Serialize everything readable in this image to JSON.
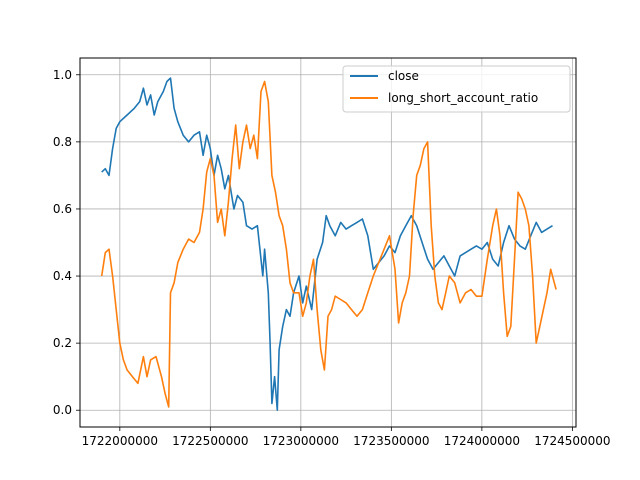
{
  "chart_data": {
    "type": "line",
    "grid": true,
    "legend_position": "top-right",
    "xlim": [
      1721780000,
      1724520000
    ],
    "ylim": [
      -0.05,
      1.05
    ],
    "x_ticks": [
      1722000000,
      1722500000,
      1723000000,
      1723500000,
      1724000000,
      1724500000
    ],
    "y_ticks": [
      0.0,
      0.2,
      0.4,
      0.6,
      0.8,
      1.0
    ],
    "x_tick_labels": [
      "1722000000",
      "1722500000",
      "1723000000",
      "1723500000",
      "1724000000",
      "1724500000"
    ],
    "y_tick_labels": [
      "0.0",
      "0.2",
      "0.4",
      "0.6",
      "0.8",
      "1.0"
    ],
    "series": [
      {
        "name": "close",
        "color": "#1f77b4",
        "points": [
          [
            1721900000,
            0.71
          ],
          [
            1721920000,
            0.72
          ],
          [
            1721940000,
            0.7
          ],
          [
            1721960000,
            0.78
          ],
          [
            1721980000,
            0.84
          ],
          [
            1722000000,
            0.86
          ],
          [
            1722040000,
            0.88
          ],
          [
            1722080000,
            0.9
          ],
          [
            1722110000,
            0.92
          ],
          [
            1722130000,
            0.96
          ],
          [
            1722150000,
            0.91
          ],
          [
            1722170000,
            0.94
          ],
          [
            1722190000,
            0.88
          ],
          [
            1722210000,
            0.92
          ],
          [
            1722240000,
            0.95
          ],
          [
            1722260000,
            0.98
          ],
          [
            1722280000,
            0.99
          ],
          [
            1722300000,
            0.9
          ],
          [
            1722320000,
            0.86
          ],
          [
            1722350000,
            0.82
          ],
          [
            1722380000,
            0.8
          ],
          [
            1722410000,
            0.82
          ],
          [
            1722440000,
            0.83
          ],
          [
            1722460000,
            0.76
          ],
          [
            1722480000,
            0.82
          ],
          [
            1722500000,
            0.78
          ],
          [
            1722520000,
            0.7
          ],
          [
            1722540000,
            0.76
          ],
          [
            1722560000,
            0.72
          ],
          [
            1722580000,
            0.66
          ],
          [
            1722600000,
            0.7
          ],
          [
            1722630000,
            0.6
          ],
          [
            1722650000,
            0.64
          ],
          [
            1722680000,
            0.62
          ],
          [
            1722700000,
            0.55
          ],
          [
            1722730000,
            0.54
          ],
          [
            1722760000,
            0.55
          ],
          [
            1722790000,
            0.4
          ],
          [
            1722800000,
            0.48
          ],
          [
            1722820000,
            0.35
          ],
          [
            1722830000,
            0.2
          ],
          [
            1722840000,
            0.02
          ],
          [
            1722855000,
            0.1
          ],
          [
            1722870000,
            0.0
          ],
          [
            1722880000,
            0.18
          ],
          [
            1722900000,
            0.25
          ],
          [
            1722920000,
            0.3
          ],
          [
            1722940000,
            0.28
          ],
          [
            1722960000,
            0.35
          ],
          [
            1722990000,
            0.4
          ],
          [
            1723010000,
            0.32
          ],
          [
            1723030000,
            0.37
          ],
          [
            1723060000,
            0.3
          ],
          [
            1723090000,
            0.45
          ],
          [
            1723120000,
            0.5
          ],
          [
            1723140000,
            0.58
          ],
          [
            1723160000,
            0.55
          ],
          [
            1723190000,
            0.52
          ],
          [
            1723220000,
            0.56
          ],
          [
            1723250000,
            0.54
          ],
          [
            1723280000,
            0.55
          ],
          [
            1723310000,
            0.56
          ],
          [
            1723340000,
            0.57
          ],
          [
            1723370000,
            0.52
          ],
          [
            1723400000,
            0.42
          ],
          [
            1723430000,
            0.44
          ],
          [
            1723460000,
            0.46
          ],
          [
            1723490000,
            0.49
          ],
          [
            1723520000,
            0.47
          ],
          [
            1723550000,
            0.52
          ],
          [
            1723580000,
            0.55
          ],
          [
            1723610000,
            0.58
          ],
          [
            1723640000,
            0.55
          ],
          [
            1723670000,
            0.5
          ],
          [
            1723700000,
            0.45
          ],
          [
            1723730000,
            0.42
          ],
          [
            1723760000,
            0.44
          ],
          [
            1723790000,
            0.46
          ],
          [
            1723820000,
            0.43
          ],
          [
            1723850000,
            0.4
          ],
          [
            1723880000,
            0.46
          ],
          [
            1723910000,
            0.47
          ],
          [
            1723940000,
            0.48
          ],
          [
            1723970000,
            0.49
          ],
          [
            1724000000,
            0.48
          ],
          [
            1724030000,
            0.5
          ],
          [
            1724060000,
            0.45
          ],
          [
            1724090000,
            0.43
          ],
          [
            1724120000,
            0.5
          ],
          [
            1724150000,
            0.55
          ],
          [
            1724180000,
            0.51
          ],
          [
            1724210000,
            0.49
          ],
          [
            1724240000,
            0.48
          ],
          [
            1724270000,
            0.52
          ],
          [
            1724300000,
            0.56
          ],
          [
            1724330000,
            0.53
          ],
          [
            1724360000,
            0.54
          ],
          [
            1724390000,
            0.55
          ]
        ]
      },
      {
        "name": "long_short_account_ratio",
        "color": "#ff7f0e",
        "points": [
          [
            1721900000,
            0.4
          ],
          [
            1721920000,
            0.47
          ],
          [
            1721940000,
            0.48
          ],
          [
            1721960000,
            0.4
          ],
          [
            1721980000,
            0.3
          ],
          [
            1722000000,
            0.2
          ],
          [
            1722020000,
            0.15
          ],
          [
            1722040000,
            0.12
          ],
          [
            1722070000,
            0.1
          ],
          [
            1722100000,
            0.08
          ],
          [
            1722130000,
            0.16
          ],
          [
            1722150000,
            0.1
          ],
          [
            1722170000,
            0.15
          ],
          [
            1722200000,
            0.16
          ],
          [
            1722230000,
            0.1
          ],
          [
            1722250000,
            0.05
          ],
          [
            1722270000,
            0.01
          ],
          [
            1722280000,
            0.35
          ],
          [
            1722300000,
            0.38
          ],
          [
            1722320000,
            0.44
          ],
          [
            1722350000,
            0.48
          ],
          [
            1722380000,
            0.51
          ],
          [
            1722410000,
            0.5
          ],
          [
            1722440000,
            0.53
          ],
          [
            1722460000,
            0.6
          ],
          [
            1722480000,
            0.71
          ],
          [
            1722500000,
            0.75
          ],
          [
            1722520000,
            0.7
          ],
          [
            1722540000,
            0.56
          ],
          [
            1722560000,
            0.6
          ],
          [
            1722580000,
            0.52
          ],
          [
            1722600000,
            0.62
          ],
          [
            1722620000,
            0.75
          ],
          [
            1722640000,
            0.85
          ],
          [
            1722660000,
            0.72
          ],
          [
            1722680000,
            0.8
          ],
          [
            1722700000,
            0.85
          ],
          [
            1722720000,
            0.78
          ],
          [
            1722740000,
            0.82
          ],
          [
            1722760000,
            0.75
          ],
          [
            1722780000,
            0.95
          ],
          [
            1722800000,
            0.98
          ],
          [
            1722820000,
            0.92
          ],
          [
            1722840000,
            0.7
          ],
          [
            1722860000,
            0.65
          ],
          [
            1722880000,
            0.58
          ],
          [
            1722900000,
            0.55
          ],
          [
            1722920000,
            0.48
          ],
          [
            1722940000,
            0.38
          ],
          [
            1722960000,
            0.35
          ],
          [
            1722990000,
            0.35
          ],
          [
            1723010000,
            0.28
          ],
          [
            1723030000,
            0.32
          ],
          [
            1723050000,
            0.4
          ],
          [
            1723070000,
            0.45
          ],
          [
            1723090000,
            0.3
          ],
          [
            1723110000,
            0.18
          ],
          [
            1723130000,
            0.12
          ],
          [
            1723150000,
            0.28
          ],
          [
            1723170000,
            0.3
          ],
          [
            1723190000,
            0.34
          ],
          [
            1723220000,
            0.33
          ],
          [
            1723250000,
            0.32
          ],
          [
            1723280000,
            0.3
          ],
          [
            1723310000,
            0.28
          ],
          [
            1723340000,
            0.3
          ],
          [
            1723370000,
            0.35
          ],
          [
            1723400000,
            0.4
          ],
          [
            1723430000,
            0.44
          ],
          [
            1723460000,
            0.48
          ],
          [
            1723490000,
            0.52
          ],
          [
            1723520000,
            0.42
          ],
          [
            1723540000,
            0.26
          ],
          [
            1723560000,
            0.32
          ],
          [
            1723580000,
            0.35
          ],
          [
            1723600000,
            0.4
          ],
          [
            1723620000,
            0.58
          ],
          [
            1723640000,
            0.7
          ],
          [
            1723660000,
            0.73
          ],
          [
            1723680000,
            0.78
          ],
          [
            1723700000,
            0.8
          ],
          [
            1723720000,
            0.55
          ],
          [
            1723740000,
            0.4
          ],
          [
            1723760000,
            0.32
          ],
          [
            1723780000,
            0.3
          ],
          [
            1723800000,
            0.35
          ],
          [
            1723820000,
            0.4
          ],
          [
            1723850000,
            0.38
          ],
          [
            1723880000,
            0.32
          ],
          [
            1723910000,
            0.35
          ],
          [
            1723940000,
            0.36
          ],
          [
            1723970000,
            0.34
          ],
          [
            1724000000,
            0.34
          ],
          [
            1724030000,
            0.45
          ],
          [
            1724060000,
            0.55
          ],
          [
            1724080000,
            0.6
          ],
          [
            1724100000,
            0.52
          ],
          [
            1724120000,
            0.35
          ],
          [
            1724140000,
            0.22
          ],
          [
            1724160000,
            0.25
          ],
          [
            1724180000,
            0.45
          ],
          [
            1724200000,
            0.65
          ],
          [
            1724220000,
            0.63
          ],
          [
            1724240000,
            0.6
          ],
          [
            1724260000,
            0.55
          ],
          [
            1724280000,
            0.4
          ],
          [
            1724300000,
            0.2
          ],
          [
            1724320000,
            0.25
          ],
          [
            1724340000,
            0.3
          ],
          [
            1724360000,
            0.35
          ],
          [
            1724380000,
            0.42
          ],
          [
            1724400000,
            0.38
          ],
          [
            1724410000,
            0.36
          ]
        ]
      }
    ]
  }
}
